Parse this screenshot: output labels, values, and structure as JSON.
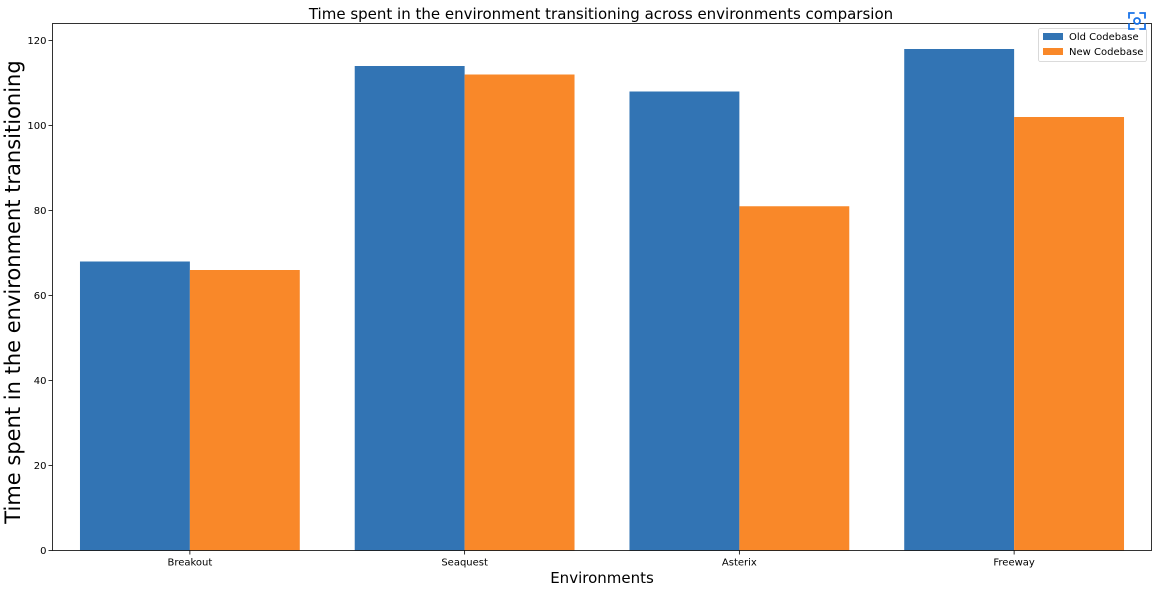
{
  "chart_data": {
    "type": "bar",
    "title": "Time spent in the environment transitioning across environments comparsion",
    "xlabel": "Environments",
    "ylabel": "Time spent in the environment transitioning",
    "categories": [
      "Breakout",
      "Seaquest",
      "Asterix",
      "Freeway"
    ],
    "series": [
      {
        "name": "Old Codebase",
        "values": [
          68,
          114,
          108,
          118
        ],
        "color": "#3274b4"
      },
      {
        "name": "New Codebase",
        "values": [
          66,
          112,
          81,
          102
        ],
        "color": "#f98829"
      }
    ],
    "ylim": [
      0,
      124
    ],
    "yticks": [
      0,
      20,
      40,
      60,
      80,
      100,
      120
    ],
    "grid": false,
    "legend_position": "top-right"
  },
  "toolbar": {
    "focus_icon": "focus-frame-icon",
    "accent_color": "#1a73e8"
  }
}
